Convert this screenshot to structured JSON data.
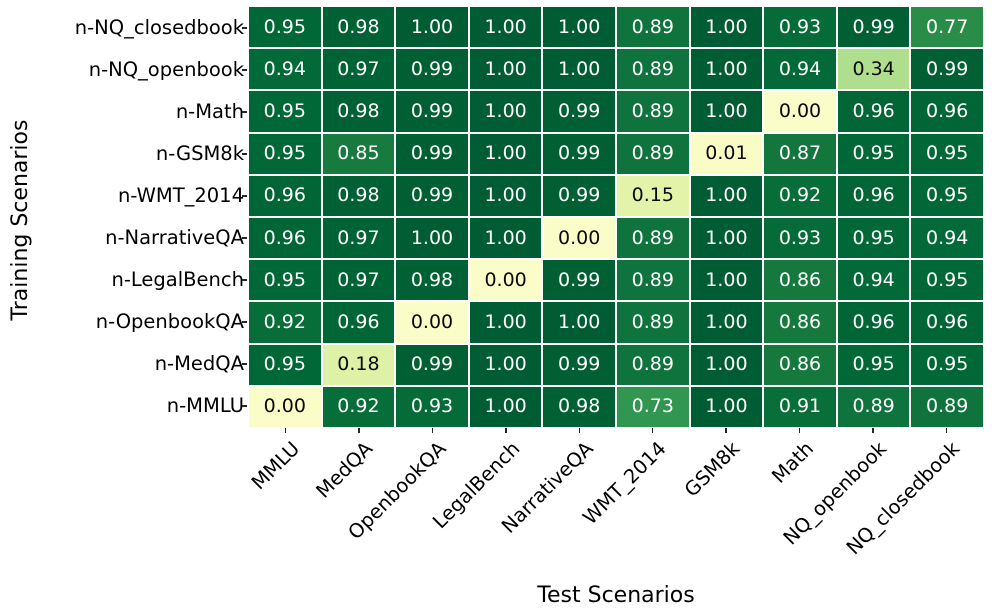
{
  "chart_data": {
    "type": "heatmap",
    "title": "",
    "xlabel": "Test Scenarios",
    "ylabel": "Training Scenarios",
    "rows": [
      "n-NQ_closedbook",
      "n-NQ_openbook",
      "n-Math",
      "n-GSM8k",
      "n-WMT_2014",
      "n-NarrativeQA",
      "n-LegalBench",
      "n-OpenbookQA",
      "n-MedQA",
      "n-MMLU"
    ],
    "columns": [
      "MMLU",
      "MedQA",
      "OpenbookQA",
      "LegalBench",
      "NarrativeQA",
      "WMT_2014",
      "GSM8k",
      "Math",
      "NQ_openbook",
      "NQ_closedbook"
    ],
    "values": [
      [
        0.95,
        0.98,
        1.0,
        1.0,
        1.0,
        0.89,
        1.0,
        0.93,
        0.99,
        0.77
      ],
      [
        0.94,
        0.97,
        0.99,
        1.0,
        1.0,
        0.89,
        1.0,
        0.94,
        0.34,
        0.99
      ],
      [
        0.95,
        0.98,
        0.99,
        1.0,
        0.99,
        0.89,
        1.0,
        0.0,
        0.96,
        0.96
      ],
      [
        0.95,
        0.85,
        0.99,
        1.0,
        0.99,
        0.89,
        0.01,
        0.87,
        0.95,
        0.95
      ],
      [
        0.96,
        0.98,
        0.99,
        1.0,
        0.99,
        0.15,
        1.0,
        0.92,
        0.96,
        0.95
      ],
      [
        0.96,
        0.97,
        1.0,
        1.0,
        0.0,
        0.89,
        1.0,
        0.93,
        0.95,
        0.94
      ],
      [
        0.95,
        0.97,
        0.98,
        0.0,
        0.99,
        0.89,
        1.0,
        0.86,
        0.94,
        0.95
      ],
      [
        0.92,
        0.96,
        0.0,
        1.0,
        1.0,
        0.89,
        1.0,
        0.86,
        0.96,
        0.96
      ],
      [
        0.95,
        0.18,
        0.99,
        1.0,
        0.99,
        0.89,
        1.0,
        0.86,
        0.95,
        0.95
      ],
      [
        0.0,
        0.92,
        0.93,
        1.0,
        0.98,
        0.73,
        1.0,
        0.91,
        0.89,
        0.89
      ]
    ],
    "value_decimals": 2,
    "colormap": {
      "name": "YlGn",
      "anchors": [
        "#ffffe5",
        "#f7fcb9",
        "#d9f0a3",
        "#addd8e",
        "#78c679",
        "#41ab5d",
        "#238443",
        "#006837",
        "#004529"
      ],
      "vmin": -0.1,
      "vmax": 1.1
    },
    "colors": {
      "annotation_on_dark": "#ffffff",
      "annotation_on_light": "#0a0a0a",
      "cell_border": "#ffffff",
      "tick": "#262626",
      "label": "#000000",
      "background": "#ffffff"
    },
    "layout_hints": {
      "x_tick_rotation_deg": 45,
      "legend": "none",
      "grid_lines": "white cell borders"
    }
  }
}
